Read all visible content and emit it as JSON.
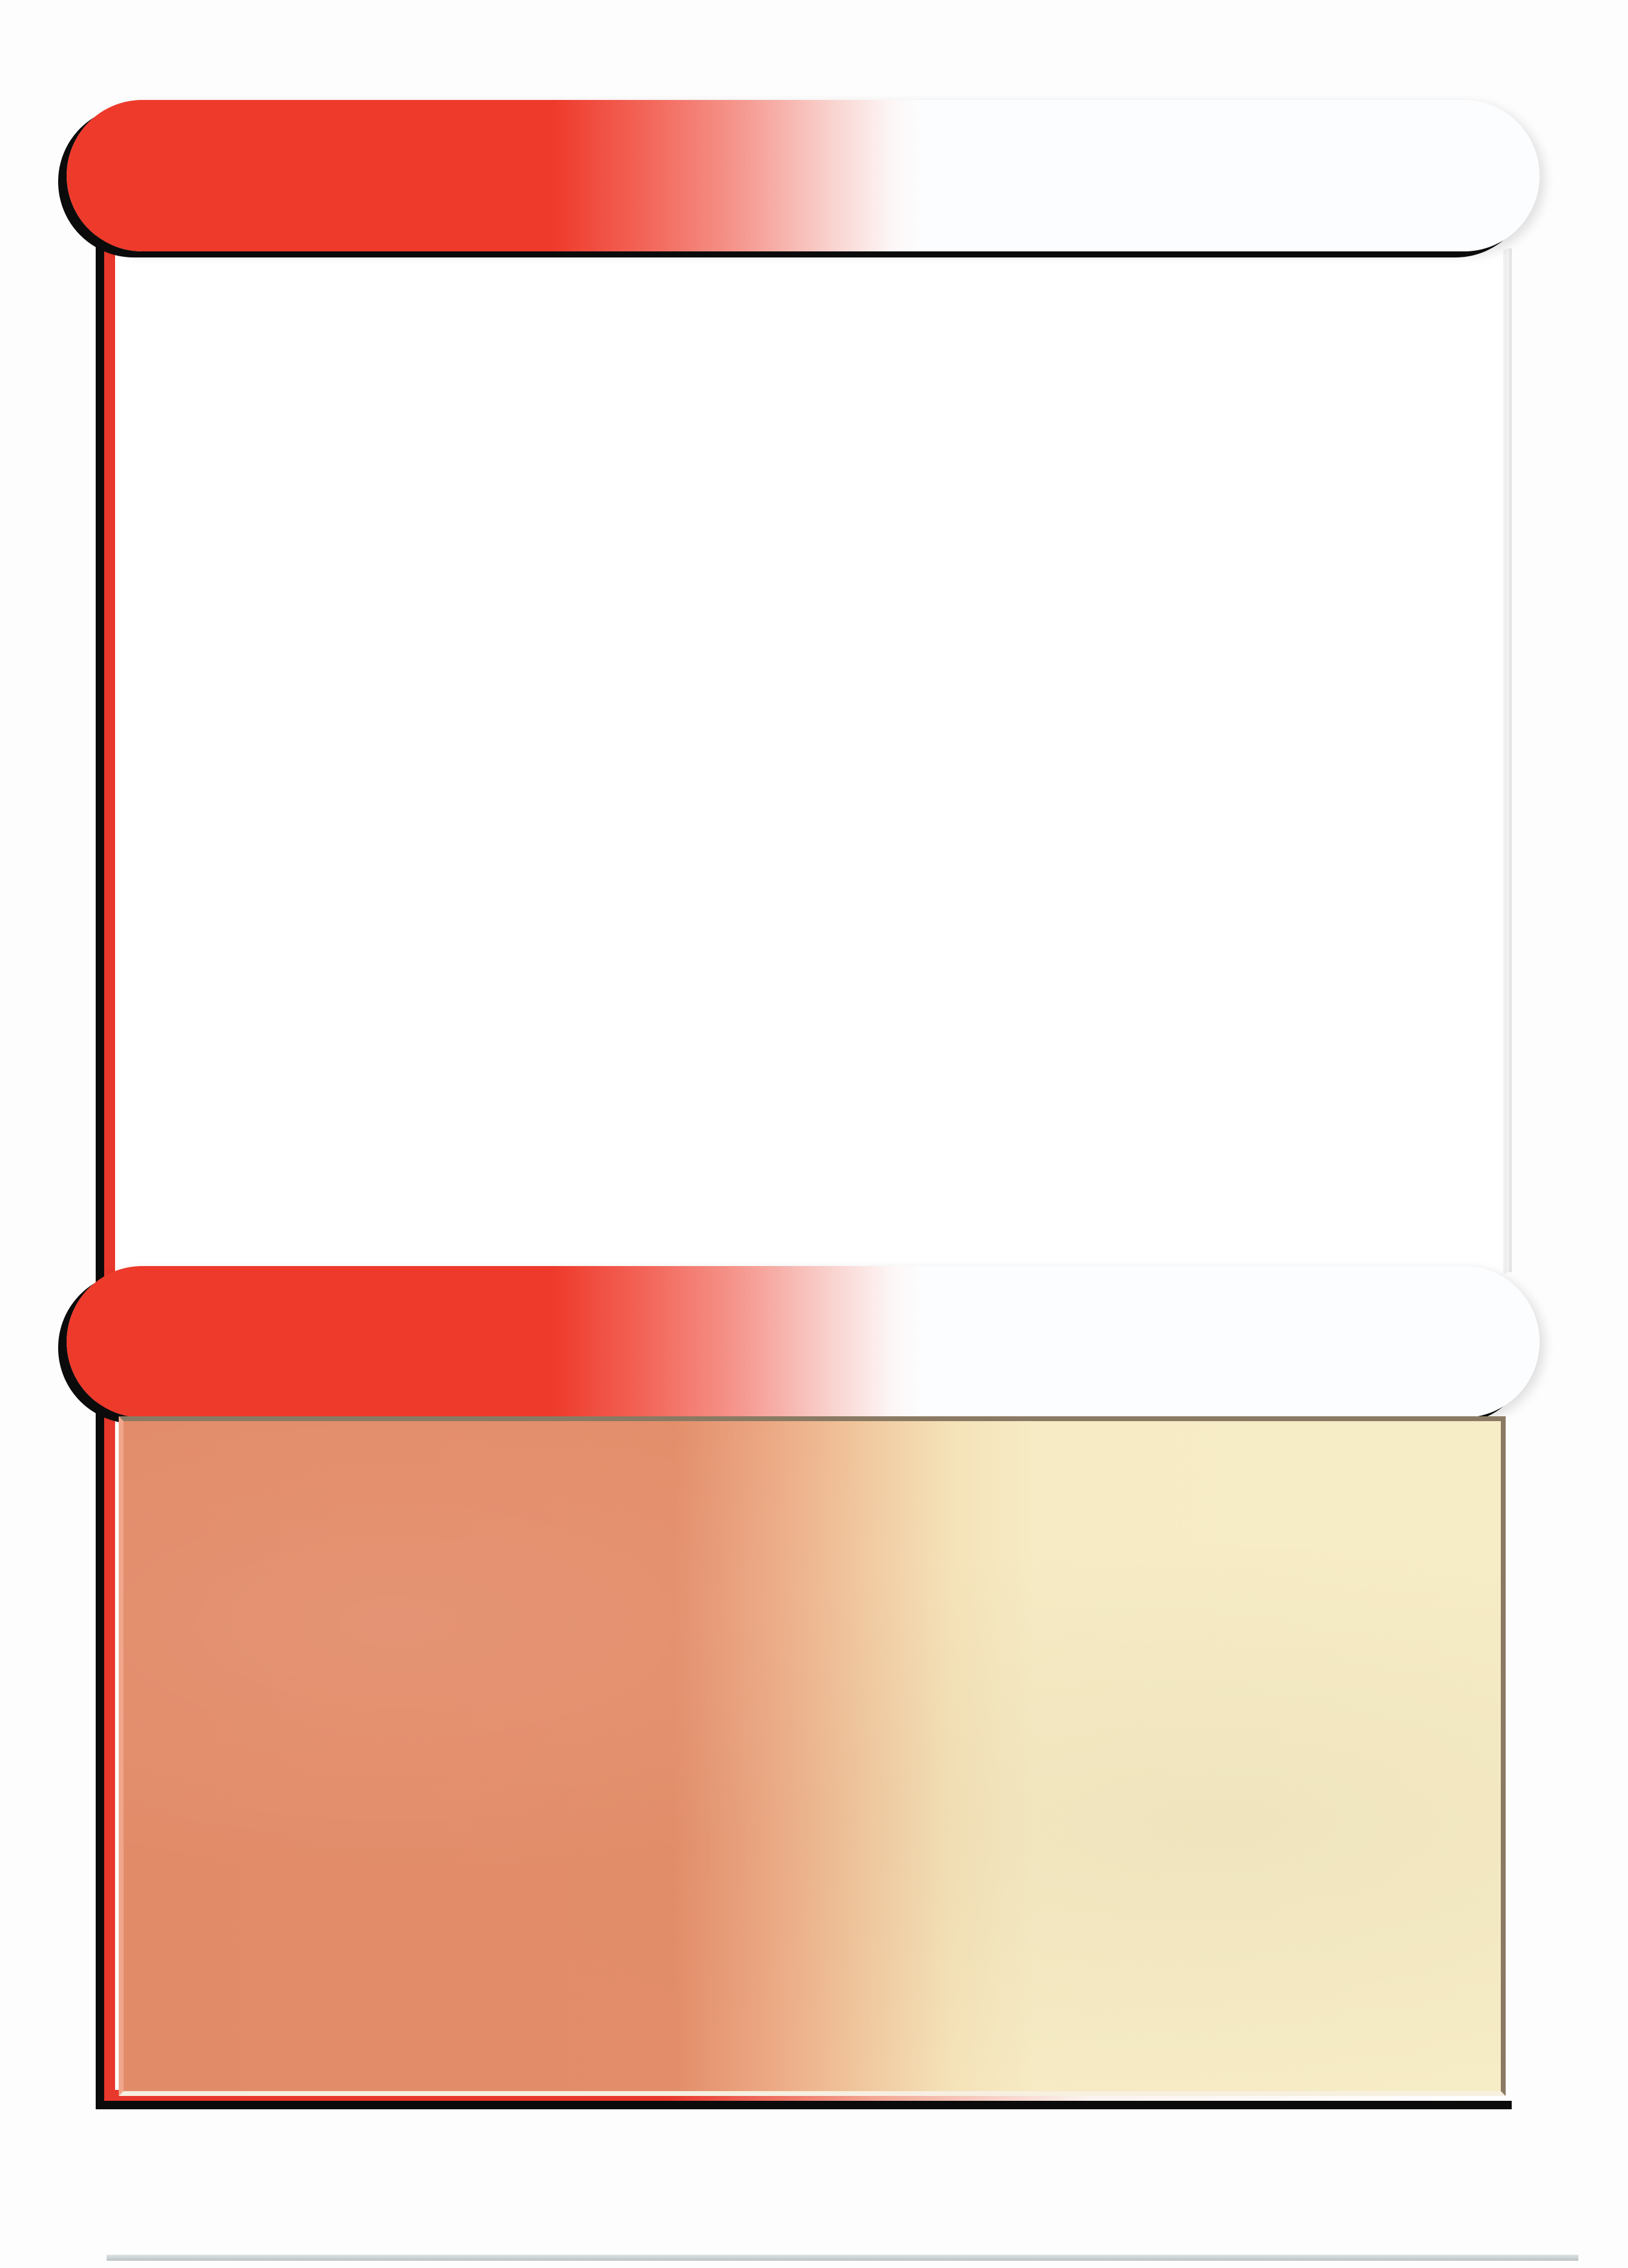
{
  "card": {
    "title": "",
    "type_line": "",
    "rules_text": ""
  },
  "colors": {
    "banner_red": "#ee3a2b",
    "banner_white": "#fcfdfe",
    "text_box_orange": "#e28b69",
    "text_box_cream": "#f6ecc6",
    "frame_shadow": "#0b0b0b"
  }
}
